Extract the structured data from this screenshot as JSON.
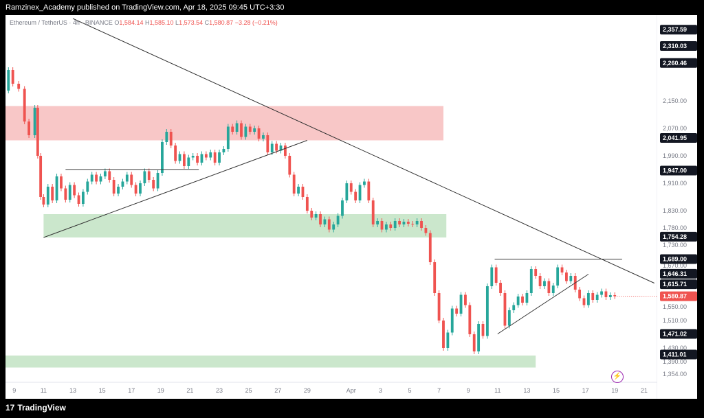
{
  "header": {
    "publisher": "Ramzinex_Academy published on TradingView.com, Apr 18, 2025 09:45 UTC+3:30"
  },
  "legend": {
    "symbol": "Ethereum / TetherUS · 4h · BINANCE",
    "open_label": "O",
    "open": "1,584.14",
    "high_label": "H",
    "high": "1,585.10",
    "low_label": "L",
    "low": "1,573.54",
    "close_label": "C",
    "close": "1,580.87",
    "change": "−3.28 (−0.21%)"
  },
  "footer": {
    "brand": "TradingView",
    "logo_glyph": "17"
  },
  "colors": {
    "up": "#26a69a",
    "down": "#ef5350",
    "supply_zone": "#f8c4c4",
    "demand_zone": "#c8e6c9",
    "trendline": "#333333",
    "price_badge": "#ef5350"
  },
  "chart_data": {
    "type": "candlestick",
    "symbol": "ETHUSDT",
    "timeframe": "4h",
    "exchange": "BINANCE",
    "y_axis": {
      "min": 1330,
      "max": 2400,
      "ticks": [
        "2,150.00",
        "2,070.00",
        "1,990.00",
        "1,910.00",
        "1,830.00",
        "1,780.00",
        "1,730.00",
        "1,670.00",
        "1,550.00",
        "1,510.00",
        "1,430.00",
        "1,390.00",
        "1,354.00"
      ],
      "tick_values": [
        2150,
        2070,
        1990,
        1910,
        1830,
        1780,
        1730,
        1670,
        1550,
        1510,
        1430,
        1390,
        1354
      ]
    },
    "x_axis": {
      "ticks": [
        "9",
        "11",
        "13",
        "15",
        "17",
        "19",
        "21",
        "23",
        "25",
        "27",
        "29",
        "Apr",
        "3",
        "5",
        "7",
        "9",
        "11",
        "13",
        "15",
        "17",
        "19",
        "21"
      ],
      "tick_days": [
        9,
        11,
        13,
        15,
        17,
        19,
        21,
        23,
        25,
        27,
        29,
        32,
        34,
        36,
        38,
        40,
        42,
        44,
        46,
        48,
        50,
        52
      ],
      "day_min": 8.4,
      "day_max": 52.9
    },
    "price_labels": [
      {
        "text": "2,357.59",
        "value": 2357.59
      },
      {
        "text": "2,310.03",
        "value": 2310.03
      },
      {
        "text": "2,260.46",
        "value": 2260.46
      },
      {
        "text": "2,041.95",
        "value": 2041.95
      },
      {
        "text": "1,947.00",
        "value": 1947.0
      },
      {
        "text": "1,754.28",
        "value": 1754.28
      },
      {
        "text": "1,689.00",
        "value": 1689.0
      },
      {
        "text": "1,646.31",
        "value": 1646.31
      },
      {
        "text": "1,615.71",
        "value": 1615.71
      },
      {
        "text": "1,471.02",
        "value": 1471.02
      },
      {
        "text": "1,411.01",
        "value": 1411.01
      }
    ],
    "current_price": {
      "text": "1,580.87",
      "value": 1580.87
    },
    "zones": [
      {
        "kind": "supply",
        "from_day": 8.4,
        "to_day": 38.3,
        "low": 2035,
        "high": 2135
      },
      {
        "kind": "demand",
        "from_day": 11.0,
        "to_day": 38.5,
        "low": 1752,
        "high": 1820
      },
      {
        "kind": "demand",
        "from_day": 8.4,
        "to_day": 44.6,
        "low": 1373,
        "high": 1408
      }
    ],
    "lines": [
      {
        "from": [
          13.0,
          2390
        ],
        "to": [
          52.7,
          1619
        ]
      },
      {
        "from": [
          11.0,
          1752
        ],
        "to": [
          29.0,
          2035
        ]
      },
      {
        "from": [
          12.5,
          1950
        ],
        "to": [
          21.6,
          1950
        ]
      },
      {
        "from": [
          41.8,
          1689
        ],
        "to": [
          50.5,
          1689
        ]
      },
      {
        "from": [
          42.0,
          1471
        ],
        "to": [
          48.2,
          1645
        ]
      }
    ],
    "candles": [
      [
        8.6,
        2180,
        2240
      ],
      [
        8.9,
        2240,
        2200
      ],
      [
        9.3,
        2200,
        2185
      ],
      [
        9.7,
        2185,
        2090
      ],
      [
        10.0,
        2090,
        2050
      ],
      [
        10.4,
        2050,
        2130
      ],
      [
        10.6,
        2130,
        1990
      ],
      [
        10.8,
        1990,
        1870
      ],
      [
        11.0,
        1870,
        1848
      ],
      [
        11.3,
        1848,
        1900
      ],
      [
        11.6,
        1900,
        1860
      ],
      [
        11.9,
        1860,
        1930
      ],
      [
        12.2,
        1930,
        1895
      ],
      [
        12.5,
        1895,
        1862
      ],
      [
        12.8,
        1862,
        1905
      ],
      [
        13.1,
        1905,
        1875
      ],
      [
        13.4,
        1875,
        1850
      ],
      [
        13.7,
        1850,
        1885
      ],
      [
        14.0,
        1885,
        1915
      ],
      [
        14.3,
        1915,
        1935
      ],
      [
        14.6,
        1935,
        1915
      ],
      [
        14.9,
        1915,
        1930
      ],
      [
        15.2,
        1930,
        1945
      ],
      [
        15.5,
        1945,
        1920
      ],
      [
        15.8,
        1920,
        1880
      ],
      [
        16.1,
        1880,
        1900
      ],
      [
        16.4,
        1900,
        1915
      ],
      [
        16.7,
        1915,
        1935
      ],
      [
        17.0,
        1935,
        1905
      ],
      [
        17.3,
        1905,
        1880
      ],
      [
        17.6,
        1880,
        1910
      ],
      [
        17.9,
        1910,
        1945
      ],
      [
        18.2,
        1945,
        1920
      ],
      [
        18.5,
        1920,
        1895
      ],
      [
        18.8,
        1895,
        1940
      ],
      [
        19.1,
        1940,
        2030
      ],
      [
        19.4,
        2030,
        2060
      ],
      [
        19.7,
        2060,
        2020
      ],
      [
        20.0,
        2020,
        1975
      ],
      [
        20.3,
        1975,
        1995
      ],
      [
        20.6,
        1995,
        1960
      ],
      [
        20.9,
        1960,
        1985
      ],
      [
        21.2,
        1985,
        1990
      ],
      [
        21.5,
        1990,
        1970
      ],
      [
        21.8,
        1970,
        1995
      ],
      [
        22.1,
        1995,
        1985
      ],
      [
        22.4,
        1985,
        2000
      ],
      [
        22.7,
        2000,
        1970
      ],
      [
        23.0,
        1970,
        2000
      ],
      [
        23.3,
        2000,
        2010
      ],
      [
        23.6,
        2010,
        2075
      ],
      [
        23.9,
        2075,
        2060
      ],
      [
        24.2,
        2060,
        2085
      ],
      [
        24.5,
        2085,
        2045
      ],
      [
        24.8,
        2045,
        2075
      ],
      [
        25.1,
        2075,
        2060
      ],
      [
        25.4,
        2060,
        2070
      ],
      [
        25.7,
        2070,
        2040
      ],
      [
        26.0,
        2040,
        2050
      ],
      [
        26.3,
        2050,
        2000
      ],
      [
        26.6,
        2000,
        2025
      ],
      [
        26.9,
        2025,
        2005
      ],
      [
        27.2,
        2005,
        2020
      ],
      [
        27.5,
        2020,
        1990
      ],
      [
        27.8,
        1990,
        1935
      ],
      [
        28.1,
        1935,
        1880
      ],
      [
        28.4,
        1880,
        1900
      ],
      [
        28.7,
        1900,
        1870
      ],
      [
        29.0,
        1870,
        1830
      ],
      [
        29.3,
        1830,
        1810
      ],
      [
        29.6,
        1810,
        1820
      ],
      [
        29.9,
        1820,
        1790
      ],
      [
        30.2,
        1790,
        1805
      ],
      [
        30.5,
        1805,
        1775
      ],
      [
        30.8,
        1775,
        1790
      ],
      [
        31.1,
        1790,
        1815
      ],
      [
        31.4,
        1815,
        1860
      ],
      [
        31.7,
        1860,
        1910
      ],
      [
        32.0,
        1910,
        1885
      ],
      [
        32.3,
        1885,
        1860
      ],
      [
        32.6,
        1860,
        1905
      ],
      [
        32.9,
        1905,
        1915
      ],
      [
        33.2,
        1915,
        1860
      ],
      [
        33.5,
        1860,
        1790
      ],
      [
        33.8,
        1790,
        1800
      ],
      [
        34.1,
        1800,
        1775
      ],
      [
        34.4,
        1775,
        1790
      ],
      [
        34.7,
        1790,
        1780
      ],
      [
        35.0,
        1780,
        1800
      ],
      [
        35.3,
        1800,
        1790
      ],
      [
        35.6,
        1790,
        1798
      ],
      [
        35.9,
        1798,
        1792
      ],
      [
        36.2,
        1792,
        1790
      ],
      [
        36.5,
        1790,
        1800
      ],
      [
        36.8,
        1800,
        1780
      ],
      [
        37.1,
        1780,
        1765
      ],
      [
        37.4,
        1765,
        1680
      ],
      [
        37.7,
        1680,
        1590
      ],
      [
        38.0,
        1590,
        1510
      ],
      [
        38.3,
        1510,
        1430
      ],
      [
        38.6,
        1430,
        1475
      ],
      [
        38.9,
        1475,
        1545
      ],
      [
        39.2,
        1545,
        1530
      ],
      [
        39.5,
        1530,
        1585
      ],
      [
        39.8,
        1585,
        1555
      ],
      [
        40.1,
        1555,
        1470
      ],
      [
        40.4,
        1470,
        1420
      ],
      [
        40.7,
        1420,
        1500
      ],
      [
        41.0,
        1500,
        1465
      ],
      [
        41.3,
        1465,
        1610
      ],
      [
        41.6,
        1610,
        1665
      ],
      [
        41.9,
        1665,
        1620
      ],
      [
        42.2,
        1620,
        1590
      ],
      [
        42.5,
        1590,
        1495
      ],
      [
        42.8,
        1495,
        1540
      ],
      [
        43.1,
        1540,
        1555
      ],
      [
        43.4,
        1555,
        1580
      ],
      [
        43.7,
        1580,
        1562
      ],
      [
        44.0,
        1562,
        1590
      ],
      [
        44.3,
        1590,
        1660
      ],
      [
        44.6,
        1660,
        1640
      ],
      [
        44.9,
        1640,
        1610
      ],
      [
        45.2,
        1610,
        1625
      ],
      [
        45.5,
        1625,
        1590
      ],
      [
        45.8,
        1590,
        1612
      ],
      [
        46.1,
        1612,
        1665
      ],
      [
        46.4,
        1665,
        1650
      ],
      [
        46.7,
        1650,
        1625
      ],
      [
        47.0,
        1625,
        1640
      ],
      [
        47.3,
        1640,
        1600
      ],
      [
        47.6,
        1600,
        1575
      ],
      [
        47.9,
        1575,
        1555
      ],
      [
        48.2,
        1555,
        1590
      ],
      [
        48.5,
        1590,
        1570
      ],
      [
        48.8,
        1570,
        1585
      ],
      [
        49.1,
        1585,
        1595
      ],
      [
        49.4,
        1595,
        1578
      ],
      [
        49.7,
        1578,
        1584
      ],
      [
        50.0,
        1584,
        1580.87
      ]
    ]
  }
}
